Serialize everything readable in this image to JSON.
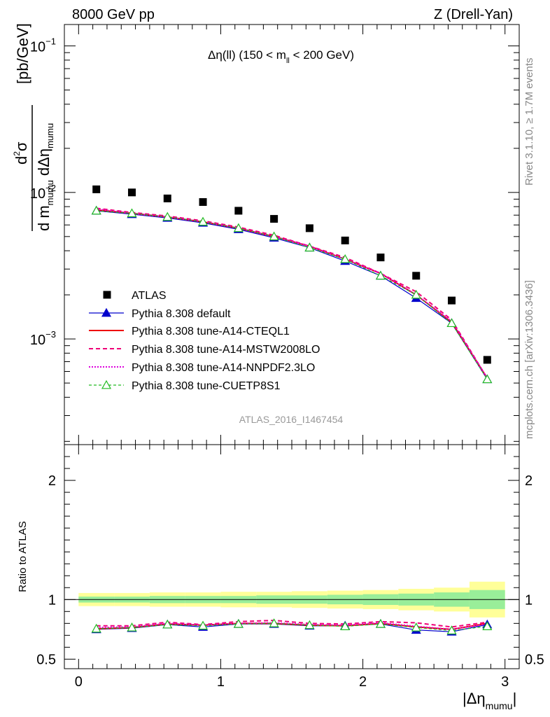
{
  "header": {
    "left": "8000 GeV pp",
    "right": "Z (Drell-Yan)"
  },
  "side_text": {
    "rivet": "Rivet 3.1.10, ≥ 1.7M events",
    "mcplots": "mcplots.cern.ch [arXiv:1306.3436]"
  },
  "plot_title": {
    "main": "Δη(ll) (150 < m",
    "sub": "ll",
    "tail": " < 200 GeV)"
  },
  "watermark": "ATLAS_2016_I1467454",
  "ylabel_main": {
    "unit": "[pb/GeV]"
  },
  "ylabel_ratio": "Ratio to ATLAS",
  "xlabel": {
    "main": "|Δη",
    "sub": "mumu",
    "tail": "|"
  },
  "colors": {
    "data": "#000000",
    "default": "#0000cc",
    "a14_cteql1": "#ee0000",
    "mstw": "#ee0077",
    "nnpdf": "#dd00dd",
    "cuetp8s1": "#22bb22",
    "band_outer": "#ffff99",
    "band_inner": "#99ee99"
  },
  "chart_data": [
    {
      "type": "scatter",
      "panel": "main",
      "x": [
        0.125,
        0.375,
        0.625,
        0.875,
        1.125,
        1.375,
        1.625,
        1.875,
        2.125,
        2.375,
        2.625,
        2.875
      ],
      "x_bin_edges": [
        0,
        0.25,
        0.5,
        0.75,
        1.0,
        1.25,
        1.5,
        1.75,
        2.0,
        2.25,
        2.5,
        2.75,
        3.0
      ],
      "ylog": true,
      "ylim": [
        0.00019,
        0.14
      ],
      "xlim": [
        -0.1,
        3.1
      ],
      "yticks": [
        {
          "value": 0.001,
          "base": "10",
          "exp": "−3"
        },
        {
          "value": 0.01,
          "base": "10",
          "exp": "−2"
        },
        {
          "value": 0.1,
          "base": "10",
          "exp": "−1"
        }
      ],
      "series": [
        {
          "key": "atlas",
          "name": "ATLAS",
          "style": "data",
          "values": [
            0.0105,
            0.01,
            0.0091,
            0.0086,
            0.0075,
            0.0066,
            0.0057,
            0.0047,
            0.0036,
            0.0027,
            0.00183,
            0.00072
          ]
        },
        {
          "key": "default",
          "name": "Pythia 8.308 default",
          "style": "blue-triangle",
          "values": [
            0.0075,
            0.0071,
            0.0067,
            0.0062,
            0.0056,
            0.0049,
            0.0042,
            0.0034,
            0.0027,
            0.0019,
            0.00128,
            0.00053
          ]
        },
        {
          "key": "cteql1",
          "name": "Pythia 8.308 tune-A14-CTEQL1",
          "style": "red-solid",
          "values": [
            0.0076,
            0.0072,
            0.0068,
            0.0063,
            0.0057,
            0.005,
            0.0043,
            0.0035,
            0.0028,
            0.002,
            0.0013,
            0.00054
          ]
        },
        {
          "key": "mstw",
          "name": "Pythia 8.308 tune-A14-MSTW2008LO",
          "style": "magenta-dashed",
          "values": [
            0.0078,
            0.0073,
            0.0069,
            0.0064,
            0.0058,
            0.0051,
            0.0043,
            0.0036,
            0.0028,
            0.0021,
            0.00135,
            0.00054
          ]
        },
        {
          "key": "nnpdf",
          "name": "Pythia 8.308 tune-A14-NNPDF2.3LO",
          "style": "violet-dotted",
          "values": [
            0.0077,
            0.0072,
            0.0068,
            0.0063,
            0.0057,
            0.005,
            0.0043,
            0.0035,
            0.0028,
            0.002,
            0.00132,
            0.00054
          ]
        },
        {
          "key": "cuetp",
          "name": "Pythia 8.308 tune-CUETP8S1",
          "style": "green-dashed-open-triangle",
          "values": [
            0.0075,
            0.0072,
            0.0068,
            0.0063,
            0.0057,
            0.005,
            0.0042,
            0.0035,
            0.0027,
            0.002,
            0.00128,
            0.00053
          ]
        }
      ]
    },
    {
      "type": "line",
      "panel": "ratio",
      "ylabel": "Ratio to ATLAS",
      "ylim": [
        0.42,
        2.3
      ],
      "xlim": [
        -0.1,
        3.1
      ],
      "yticks": [
        0.5,
        1,
        2
      ],
      "xticks": [
        0,
        1,
        2,
        3
      ],
      "band_outer_half": [
        0.055,
        0.055,
        0.06,
        0.06,
        0.065,
        0.065,
        0.07,
        0.075,
        0.08,
        0.09,
        0.1,
        0.15
      ],
      "band_inner_half": [
        0.025,
        0.025,
        0.03,
        0.03,
        0.03,
        0.035,
        0.035,
        0.04,
        0.045,
        0.05,
        0.06,
        0.08
      ],
      "series": [
        {
          "key": "default",
          "values": [
            0.75,
            0.76,
            0.79,
            0.77,
            0.795,
            0.795,
            0.78,
            0.78,
            0.795,
            0.745,
            0.73,
            0.79
          ]
        },
        {
          "key": "cteql1",
          "values": [
            0.755,
            0.765,
            0.795,
            0.785,
            0.8,
            0.8,
            0.785,
            0.78,
            0.8,
            0.77,
            0.75,
            0.8
          ]
        },
        {
          "key": "mstw",
          "values": [
            0.78,
            0.78,
            0.81,
            0.79,
            0.815,
            0.825,
            0.8,
            0.795,
            0.815,
            0.805,
            0.77,
            0.81
          ]
        },
        {
          "key": "nnpdf",
          "values": [
            0.765,
            0.77,
            0.8,
            0.785,
            0.8,
            0.805,
            0.79,
            0.785,
            0.805,
            0.775,
            0.75,
            0.795
          ]
        },
        {
          "key": "cuetp",
          "values": [
            0.755,
            0.765,
            0.79,
            0.78,
            0.795,
            0.8,
            0.785,
            0.775,
            0.795,
            0.765,
            0.74,
            0.775
          ]
        }
      ]
    }
  ]
}
